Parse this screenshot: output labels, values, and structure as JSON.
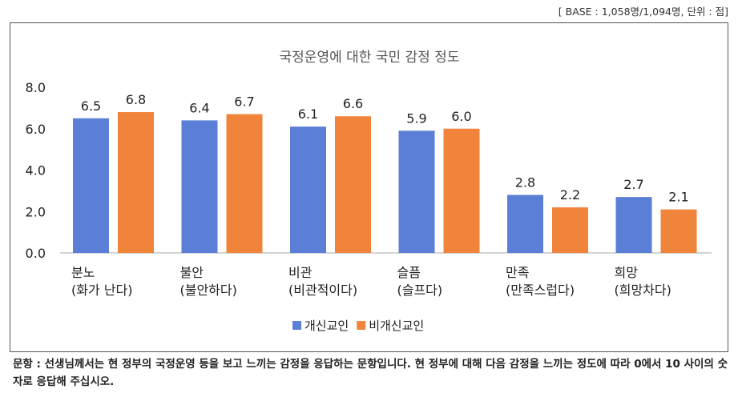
{
  "base_note": "[ BASE : 1,058명/1,094명, 단위 : 점]",
  "question": "문항 : 선생님께서는 현 정부의 국정운영 등을 보고 느끼는 감정을 응답하는 문항입니다. 현 정부에 대해 다음 감정을 느끼는 정도에 따라 0에서 10 사이의 숫자로 응답해 주십시오.",
  "colors": {
    "series_1": "#5B7FD6",
    "series_2": "#F0843A"
  },
  "chart_data": {
    "type": "bar",
    "title": "국정운영에 대한 국민 감정 정도",
    "categories": [
      [
        "분노",
        "(화가 난다)"
      ],
      [
        "불안",
        "(불안하다)"
      ],
      [
        "비관",
        "(비관적이다)"
      ],
      [
        "슬픔",
        "(슬프다)"
      ],
      [
        "만족",
        "(만족스럽다)"
      ],
      [
        "희망",
        "(희망차다)"
      ]
    ],
    "series": [
      {
        "name": "개신교인",
        "values": [
          6.5,
          6.4,
          6.1,
          5.9,
          2.8,
          2.7
        ]
      },
      {
        "name": "비개신교인",
        "values": [
          6.8,
          6.7,
          6.6,
          6.0,
          2.2,
          2.1
        ]
      }
    ],
    "ylim": [
      0,
      8
    ],
    "yticks": [
      "0.0",
      "2.0",
      "4.0",
      "6.0",
      "8.0"
    ],
    "legend_position": "bottom",
    "grid": false
  }
}
